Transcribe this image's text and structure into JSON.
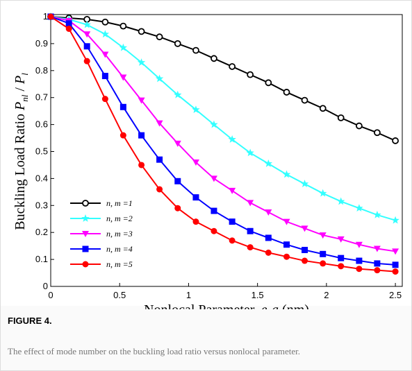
{
  "chart_data": {
    "type": "line",
    "figure_label": "FIGURE 4.",
    "caption": "The effect of mode number on the buckling load ratio versus nonlocal parameter.",
    "xlabel": [
      "Nonlocal Parameter, ",
      "e",
      "o",
      "a",
      " (nm)"
    ],
    "ylabel": [
      "Buckling Load Ratio ",
      "P",
      "nl",
      " / ",
      "P",
      "l"
    ],
    "x": [
      0,
      0.132,
      0.263,
      0.395,
      0.526,
      0.658,
      0.789,
      0.921,
      1.053,
      1.184,
      1.316,
      1.447,
      1.579,
      1.711,
      1.842,
      1.974,
      2.105,
      2.237,
      2.368,
      2.5
    ],
    "series": [
      {
        "name": "n, m =1",
        "color": "#000000",
        "marker": "open-circle",
        "values": [
          1,
          0.995,
          0.99,
          0.98,
          0.965,
          0.945,
          0.925,
          0.9,
          0.875,
          0.845,
          0.815,
          0.785,
          0.755,
          0.72,
          0.69,
          0.66,
          0.625,
          0.595,
          0.57,
          0.54
        ]
      },
      {
        "name": "n, m =2",
        "color": "#33ffff",
        "marker": "star",
        "values": [
          1,
          0.99,
          0.97,
          0.935,
          0.885,
          0.83,
          0.77,
          0.71,
          0.655,
          0.6,
          0.545,
          0.495,
          0.455,
          0.415,
          0.38,
          0.345,
          0.315,
          0.29,
          0.265,
          0.245
        ]
      },
      {
        "name": "n, m =3",
        "color": "#ff00ff",
        "marker": "triangle-down",
        "values": [
          1,
          0.985,
          0.935,
          0.86,
          0.775,
          0.69,
          0.605,
          0.53,
          0.46,
          0.4,
          0.355,
          0.31,
          0.275,
          0.24,
          0.215,
          0.19,
          0.175,
          0.155,
          0.14,
          0.13
        ]
      },
      {
        "name": "n, m =4",
        "color": "#0000ff",
        "marker": "square",
        "values": [
          1,
          0.975,
          0.89,
          0.78,
          0.665,
          0.56,
          0.47,
          0.39,
          0.33,
          0.28,
          0.24,
          0.205,
          0.18,
          0.155,
          0.135,
          0.12,
          0.105,
          0.095,
          0.085,
          0.08
        ]
      },
      {
        "name": "n, m =5",
        "color": "#ff0000",
        "marker": "circle",
        "values": [
          1,
          0.955,
          0.835,
          0.695,
          0.56,
          0.45,
          0.36,
          0.29,
          0.24,
          0.205,
          0.17,
          0.145,
          0.125,
          0.11,
          0.095,
          0.085,
          0.075,
          0.065,
          0.06,
          0.055
        ]
      }
    ],
    "xlim": [
      0,
      2.55
    ],
    "ylim": [
      0,
      1
    ],
    "xticks": [
      0,
      0.5,
      1,
      1.5,
      2,
      2.5
    ],
    "yticks": [
      0,
      0.1,
      0.2,
      0.3,
      0.4,
      0.5,
      0.6,
      0.7,
      0.8,
      0.9,
      1
    ],
    "grid": false,
    "legend": "lower left"
  }
}
